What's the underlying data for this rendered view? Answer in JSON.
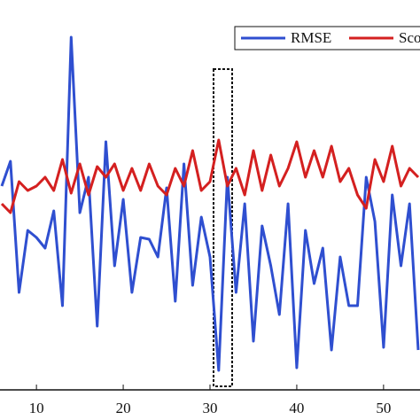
{
  "chart_data": {
    "type": "line",
    "x": [
      6,
      7,
      8,
      9,
      10,
      11,
      12,
      13,
      14,
      15,
      16,
      17,
      18,
      19,
      20,
      21,
      22,
      23,
      24,
      25,
      26,
      27,
      28,
      29,
      30,
      31,
      32,
      33,
      34,
      35,
      36,
      37,
      38,
      39,
      40,
      41,
      42,
      43,
      44,
      45,
      46,
      47,
      48,
      49,
      50,
      51,
      52,
      53,
      54
    ],
    "series": [
      {
        "name": "RMSE",
        "color": "#2f4fd0",
        "values": [
          230,
          258,
          110,
          180,
          172,
          160,
          202,
          95,
          398,
          200,
          240,
          72,
          280,
          140,
          215,
          110,
          172,
          170,
          150,
          228,
          100,
          255,
          118,
          195,
          150,
          22,
          240,
          110,
          210,
          55,
          185,
          140,
          85,
          210,
          25,
          180,
          120,
          160,
          45,
          150,
          95,
          95,
          240,
          190,
          48,
          220,
          140,
          210,
          45
        ]
      },
      {
        "name": "Sco",
        "color": "#d42020",
        "values": [
          210,
          200,
          235,
          225,
          230,
          240,
          225,
          260,
          222,
          255,
          220,
          252,
          240,
          255,
          225,
          250,
          225,
          255,
          230,
          220,
          250,
          230,
          270,
          225,
          235,
          282,
          230,
          250,
          220,
          270,
          225,
          265,
          230,
          250,
          280,
          240,
          270,
          240,
          275,
          235,
          250,
          220,
          205,
          260,
          235,
          275,
          230,
          250,
          240
        ]
      }
    ],
    "xlim": [
      5.8,
      54.2
    ],
    "ylim": [
      0,
      440
    ],
    "xticks": [
      10,
      20,
      30,
      40,
      50
    ]
  }
}
